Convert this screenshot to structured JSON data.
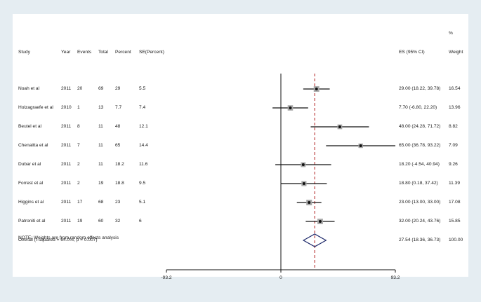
{
  "headers": {
    "study": "Study",
    "year": "Year",
    "events": "Events",
    "total": "Total",
    "percent": "Percent",
    "se": "SE(Percent)",
    "es": "ES (95% CI)",
    "weight_symbol": "%",
    "weight": "Weight"
  },
  "chart_data": {
    "type": "forest",
    "null_value": 0,
    "xticks": [
      "-93.2",
      "0",
      "93.2"
    ],
    "xlim": [
      -93.2,
      93.2
    ],
    "reference_line": 27.54,
    "reference_line_color": "#b22222",
    "marker_color": "#111111",
    "diamond_color": "#1f2a6b",
    "studies": [
      {
        "study": "Noah et al",
        "year": "2011",
        "events": "20",
        "total": "69",
        "percent": "29",
        "se": "5.5",
        "es": 29.0,
        "lo": 18.22,
        "hi": 39.78,
        "es_text": "29.00 (18.22, 39.78)",
        "weight": "16.54"
      },
      {
        "study": "Holzagraefe et al",
        "year": "2010",
        "events": "1",
        "total": "13",
        "percent": "7.7",
        "se": "7.4",
        "es": 7.7,
        "lo": -6.8,
        "hi": 22.2,
        "es_text": "7.70 (-6.80, 22.20)",
        "weight": "13.96"
      },
      {
        "study": "Beutel et al",
        "year": "2011",
        "events": "8",
        "total": "11",
        "percent": "48",
        "se": "12.1",
        "es": 48.0,
        "lo": 24.28,
        "hi": 71.72,
        "es_text": "48.00 (24.28, 71.72)",
        "weight": "8.82"
      },
      {
        "study": "Chenaitta et al",
        "year": "2011",
        "events": "7",
        "total": "11",
        "percent": "65",
        "se": "14.4",
        "es": 65.0,
        "lo": 36.78,
        "hi": 93.22,
        "es_text": "65.00 (36.78, 93.22)",
        "weight": "7.09"
      },
      {
        "study": "Dubar et al",
        "year": "2011",
        "events": "2",
        "total": "11",
        "percent": "18.2",
        "se": "11.6",
        "es": 18.2,
        "lo": -4.54,
        "hi": 40.94,
        "es_text": "18.20 (-4.54, 40.94)",
        "weight": "9.26"
      },
      {
        "study": "Forrest et al",
        "year": "2011",
        "events": "2",
        "total": "19",
        "percent": "18.8",
        "se": "9.5",
        "es": 18.8,
        "lo": 0.18,
        "hi": 37.42,
        "es_text": "18.80 (0.18, 37.42)",
        "weight": "11.39"
      },
      {
        "study": "Higgins et al",
        "year": "2011",
        "events": "17",
        "total": "68",
        "percent": "23",
        "se": "5.1",
        "es": 23.0,
        "lo": 13.0,
        "hi": 33.0,
        "es_text": "23.00 (13.00, 33.00)",
        "weight": "17.08"
      },
      {
        "study": "Patroniti et al",
        "year": "2011",
        "events": "19",
        "total": "60",
        "percent": "32",
        "se": "6",
        "es": 32.0,
        "lo": 20.24,
        "hi": 43.76,
        "es_text": "32.00 (20.24, 43.76)",
        "weight": "15.85"
      }
    ],
    "overall": {
      "label": "Overall  (I-squared = 64.0%, p = 0.007)",
      "es": 27.54,
      "lo": 18.36,
      "hi": 36.73,
      "es_text": "27.54 (18.36, 36.73)",
      "weight": "100.00"
    },
    "note": "NOTE: Weights are from random effects analysis"
  }
}
